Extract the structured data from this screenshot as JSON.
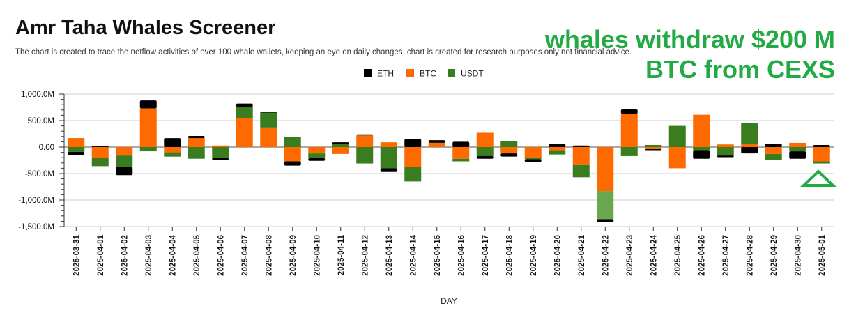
{
  "title": "Amr Taha Whales Screener",
  "subtitle": "The chart is created to trace the netflow activities of over 100 whale wallets, keeping an eye on daily changes.  chart is created for research purposes only not financial advice.",
  "annotation": {
    "line1": "whales withdraw $200 M",
    "line2": "BTC from CEXS",
    "color": "#22aa44",
    "marker_icon": "up-triangle-icon"
  },
  "colors": {
    "ETH": "#000000",
    "BTC": "#ff6a00",
    "USDT": "#3a7d1f",
    "USDT_highlight": "#6aa84f"
  },
  "chart_data": {
    "type": "bar",
    "stacked": true,
    "title": "Amr Taha Whales Screener",
    "xlabel": "DAY",
    "ylabel": "",
    "ylim": [
      -1500,
      1000
    ],
    "yticks": [
      -1500,
      -1000,
      -500,
      0,
      500,
      1000
    ],
    "ytick_labels": [
      "-1,500.0M",
      "-1,000.0M",
      "-500.0M",
      "0.00",
      "500.0M",
      "1,000.0M"
    ],
    "grid": true,
    "legend_position": "top-center",
    "unit": "M",
    "categories": [
      "2025-03-31",
      "2025-04-01",
      "2025-04-02",
      "2025-04-03",
      "2025-04-04",
      "2025-04-05",
      "2025-04-06",
      "2025-04-07",
      "2025-04-08",
      "2025-04-09",
      "2025-04-10",
      "2025-04-11",
      "2025-04-12",
      "2025-04-13",
      "2025-04-14",
      "2025-04-15",
      "2025-04-16",
      "2025-04-17",
      "2025-04-18",
      "2025-04-19",
      "2025-04-20",
      "2025-04-21",
      "2025-04-22",
      "2025-04-23",
      "2025-04-24",
      "2025-04-25",
      "2025-04-26",
      "2025-04-27",
      "2025-04-28",
      "2025-04-29",
      "2025-04-30",
      "2025-05-01"
    ],
    "series": [
      {
        "name": "ETH",
        "values": [
          -60,
          20,
          -150,
          150,
          170,
          40,
          -30,
          60,
          10,
          -80,
          -50,
          30,
          20,
          -70,
          150,
          50,
          100,
          -50,
          -60,
          -50,
          60,
          30,
          -60,
          80,
          -20,
          0,
          -160,
          -30,
          -120,
          60,
          -140,
          40
        ]
      },
      {
        "name": "BTC",
        "values": [
          170,
          -200,
          -160,
          730,
          -100,
          170,
          30,
          540,
          370,
          -270,
          -120,
          -130,
          220,
          90,
          -370,
          80,
          -220,
          270,
          -120,
          -200,
          -60,
          -340,
          -830,
          630,
          -40,
          -400,
          610,
          50,
          60,
          -130,
          80,
          -270
        ]
      },
      {
        "name": "USDT",
        "values": [
          -90,
          -160,
          -220,
          -80,
          -80,
          -220,
          -210,
          220,
          280,
          190,
          -90,
          60,
          -310,
          -400,
          -280,
          0,
          -50,
          -170,
          110,
          -30,
          -80,
          -230,
          -530,
          -170,
          40,
          400,
          -60,
          -160,
          400,
          -120,
          -80,
          -40
        ]
      }
    ],
    "highlight": {
      "category": "2025-04-22",
      "series": "USDT"
    }
  }
}
